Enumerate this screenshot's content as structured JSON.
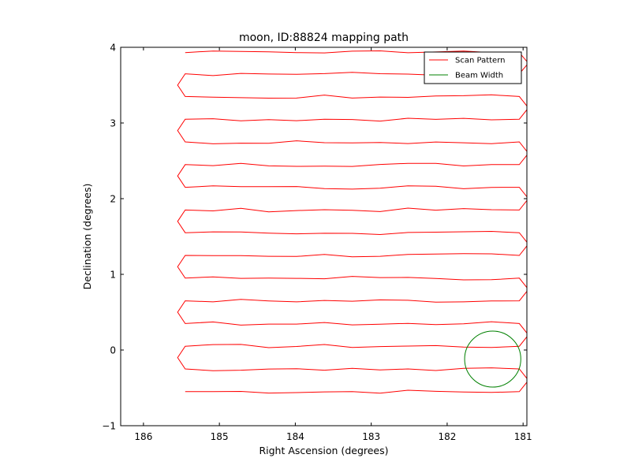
{
  "chart_data": {
    "type": "line",
    "title": "moon, ID:88824 mapping path",
    "xlabel": "Right Ascension (degrees)",
    "ylabel": "Declination (degrees)",
    "xlim": [
      186.3,
      180.95
    ],
    "ylim": [
      -1,
      4
    ],
    "x_inverted": true,
    "xticks": [
      186,
      185,
      184,
      183,
      182,
      181
    ],
    "yticks": [
      -1,
      0,
      1,
      2,
      3,
      4
    ],
    "grid": false,
    "legend_position": "top-right",
    "scan_x_left": 185.45,
    "scan_x_right": 181.05,
    "scan_declinations": [
      -0.55,
      -0.25,
      0.05,
      0.35,
      0.65,
      0.95,
      1.25,
      1.55,
      1.85,
      2.15,
      2.45,
      2.75,
      3.05,
      3.35,
      3.65,
      3.93
    ],
    "series": [
      {
        "name": "Scan Pattern",
        "color": "#ff0000",
        "style": "boustrophedon raster scan"
      },
      {
        "name": "Beam Width",
        "color": "#008000",
        "style": "circle",
        "center": [
          181.4,
          -0.12
        ],
        "radius_deg": 0.37
      }
    ]
  }
}
